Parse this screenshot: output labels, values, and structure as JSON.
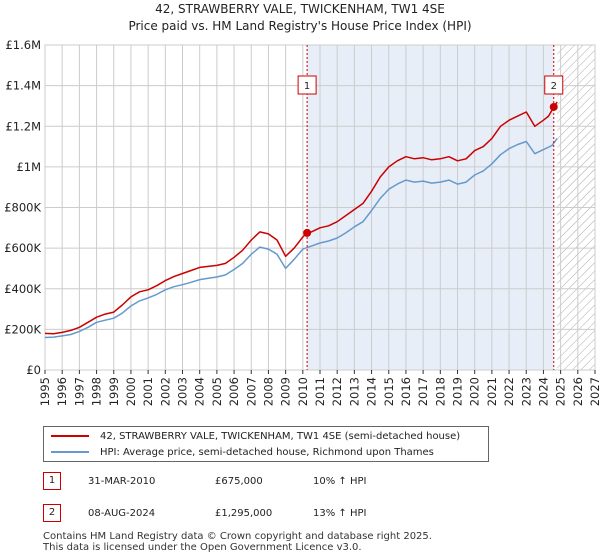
{
  "chart_data": {
    "type": "line",
    "title": "42, STRAWBERRY VALE, TWICKENHAM, TW1 4SE",
    "subtitle": "Price paid vs. HM Land Registry's House Price Index (HPI)",
    "x_ticks": [
      "1995",
      "1996",
      "1997",
      "1998",
      "1999",
      "2000",
      "2001",
      "2002",
      "2003",
      "2004",
      "2005",
      "2006",
      "2007",
      "2008",
      "2009",
      "2010",
      "2011",
      "2012",
      "2013",
      "2014",
      "2015",
      "2016",
      "2017",
      "2018",
      "2019",
      "2020",
      "2021",
      "2022",
      "2023",
      "2024",
      "2025",
      "2026",
      "2027"
    ],
    "y_ticks": [
      "£0",
      "£200K",
      "£400K",
      "£600K",
      "£800K",
      "£1M",
      "£1.2M",
      "£1.4M",
      "£1.6M"
    ],
    "xlim": [
      1995,
      2027
    ],
    "ylim": [
      0,
      1600000
    ],
    "forecast_start": 2024.8,
    "shaded_between_sales": [
      2010.25,
      2024.6
    ],
    "series": [
      {
        "name": "42, STRAWBERRY VALE, TWICKENHAM, TW1 4SE (semi-detached house)",
        "color": "#cc0000",
        "x": [
          1995,
          1995.5,
          1996,
          1996.5,
          1997,
          1997.5,
          1998,
          1998.5,
          1999,
          1999.5,
          2000,
          2000.5,
          2001,
          2001.5,
          2002,
          2002.5,
          2003,
          2003.5,
          2004,
          2004.5,
          2005,
          2005.5,
          2006,
          2006.5,
          2007,
          2007.5,
          2008,
          2008.5,
          2009,
          2009.5,
          2010,
          2010.25,
          2010.5,
          2011,
          2011.5,
          2012,
          2012.5,
          2013,
          2013.5,
          2014,
          2014.5,
          2015,
          2015.5,
          2016,
          2016.5,
          2017,
          2017.5,
          2018,
          2018.5,
          2019,
          2019.5,
          2020,
          2020.5,
          2021,
          2021.5,
          2022,
          2022.5,
          2023,
          2023.5,
          2024,
          2024.3,
          2024.6,
          2024.8
        ],
        "values": [
          180000,
          178000,
          185000,
          195000,
          210000,
          235000,
          260000,
          275000,
          285000,
          320000,
          360000,
          385000,
          395000,
          415000,
          440000,
          460000,
          475000,
          490000,
          505000,
          510000,
          515000,
          525000,
          555000,
          590000,
          640000,
          680000,
          670000,
          640000,
          560000,
          600000,
          655000,
          675000,
          680000,
          700000,
          710000,
          730000,
          760000,
          790000,
          820000,
          880000,
          950000,
          1000000,
          1030000,
          1050000,
          1040000,
          1045000,
          1035000,
          1040000,
          1050000,
          1030000,
          1040000,
          1080000,
          1100000,
          1140000,
          1200000,
          1230000,
          1250000,
          1270000,
          1200000,
          1230000,
          1250000,
          1295000,
          1320000
        ]
      },
      {
        "name": "HPI: Average price, semi-detached house, Richmond upon Thames",
        "color": "#6699cc",
        "x": [
          1995,
          1995.5,
          1996,
          1996.5,
          1997,
          1997.5,
          1998,
          1998.5,
          1999,
          1999.5,
          2000,
          2000.5,
          2001,
          2001.5,
          2002,
          2002.5,
          2003,
          2003.5,
          2004,
          2004.5,
          2005,
          2005.5,
          2006,
          2006.5,
          2007,
          2007.5,
          2008,
          2008.5,
          2009,
          2009.5,
          2010,
          2010.5,
          2011,
          2011.5,
          2012,
          2012.5,
          2013,
          2013.5,
          2014,
          2014.5,
          2015,
          2015.5,
          2016,
          2016.5,
          2017,
          2017.5,
          2018,
          2018.5,
          2019,
          2019.5,
          2020,
          2020.5,
          2021,
          2021.5,
          2022,
          2022.5,
          2023,
          2023.5,
          2024,
          2024.5,
          2024.8
        ],
        "values": [
          160000,
          162000,
          168000,
          175000,
          190000,
          210000,
          235000,
          245000,
          255000,
          280000,
          315000,
          340000,
          355000,
          372000,
          395000,
          410000,
          420000,
          432000,
          445000,
          452000,
          458000,
          468000,
          495000,
          525000,
          570000,
          605000,
          595000,
          570000,
          500000,
          545000,
          595000,
          610000,
          625000,
          635000,
          650000,
          675000,
          705000,
          730000,
          785000,
          845000,
          890000,
          915000,
          935000,
          925000,
          930000,
          920000,
          925000,
          935000,
          915000,
          925000,
          960000,
          980000,
          1015000,
          1060000,
          1090000,
          1110000,
          1125000,
          1065000,
          1085000,
          1105000,
          1140000
        ]
      }
    ],
    "sales": [
      {
        "id": "1",
        "x": 2010.25,
        "value": 675000
      },
      {
        "id": "2",
        "x": 2024.6,
        "value": 1295000
      }
    ],
    "legend": [
      {
        "label": "42, STRAWBERRY VALE, TWICKENHAM, TW1 4SE (semi-detached house)",
        "color": "#cc0000"
      },
      {
        "label": "HPI: Average price, semi-detached house, Richmond upon Thames",
        "color": "#6699cc"
      }
    ]
  },
  "transactions": [
    {
      "id": "1",
      "date": "31-MAR-2010",
      "price": "£675,000",
      "hpi": "10% ↑ HPI"
    },
    {
      "id": "2",
      "date": "08-AUG-2024",
      "price": "£1,295,000",
      "hpi": "13% ↑ HPI"
    }
  ],
  "footer": {
    "line1": "Contains HM Land Registry data © Crown copyright and database right 2025.",
    "line2": "This data is licensed under the Open Government Licence v3.0."
  },
  "colors": {
    "property_line": "#cc0000",
    "hpi_line": "#6699cc",
    "shade": "#e8eef8",
    "grid": "#cccccc"
  }
}
